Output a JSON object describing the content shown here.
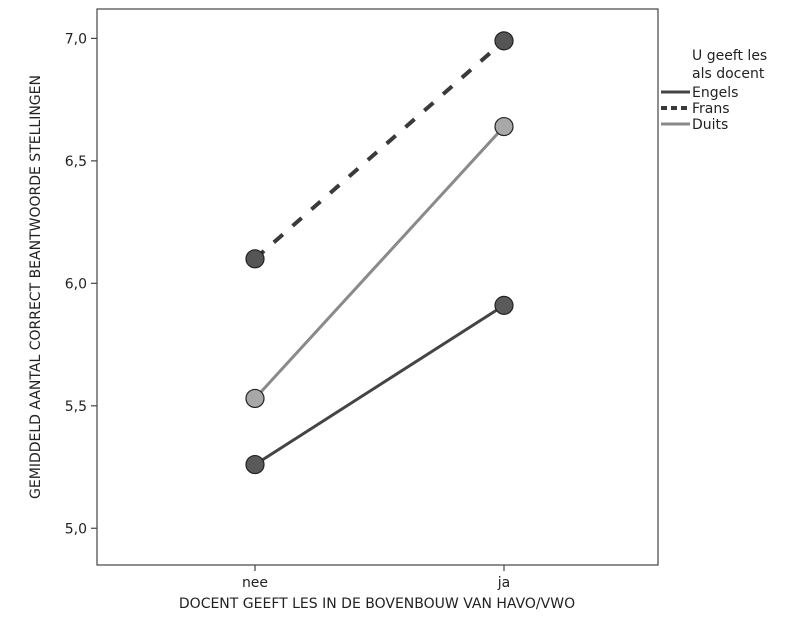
{
  "chart_data": {
    "type": "line",
    "title": "",
    "xlabel": "DOCENT GEEFT LES IN DE BOVENBOUW VAN HAVO/VWO",
    "ylabel": "GEMIDDELD AANTAL CORRECT BEANTWOORDE STELLINGEN",
    "categories": [
      "nee",
      "ja"
    ],
    "ylim": [
      4.85,
      7.12
    ],
    "yticks": [
      5.0,
      5.5,
      6.0,
      6.5,
      7.0
    ],
    "ytick_labels": [
      "5,0",
      "5,5",
      "6,0",
      "6,5",
      "7,0"
    ],
    "grid": false,
    "legend": {
      "title_lines": [
        "U geeft les",
        "als docent"
      ],
      "placement": "right"
    },
    "series": [
      {
        "name": "Engels",
        "values": [
          5.26,
          5.91
        ],
        "color": "#444444",
        "style": "solid"
      },
      {
        "name": "Frans",
        "values": [
          6.1,
          6.99
        ],
        "color": "#3a3a3a",
        "style": "dashed"
      },
      {
        "name": "Duits",
        "values": [
          5.53,
          6.64
        ],
        "color": "#8a8a8a",
        "style": "solid"
      }
    ]
  }
}
